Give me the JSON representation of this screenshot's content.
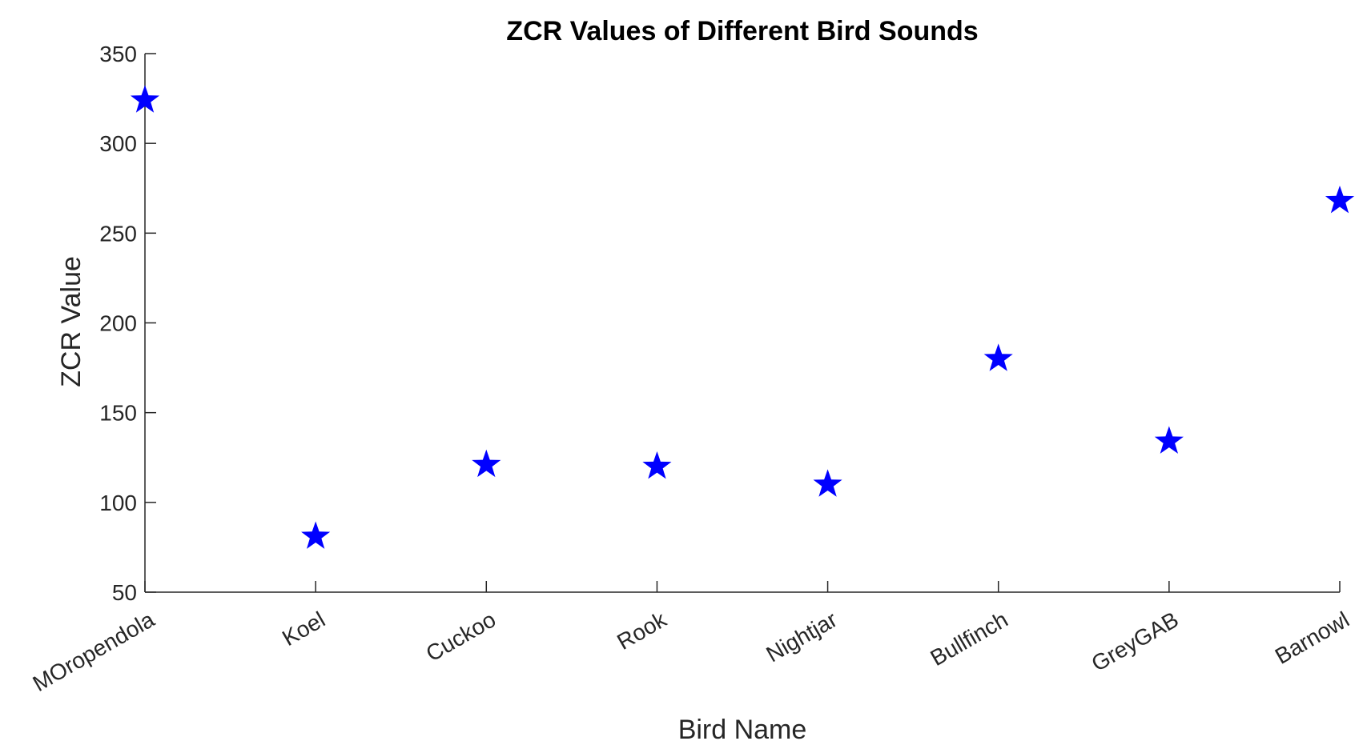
{
  "chart_data": {
    "type": "scatter",
    "title": "ZCR Values of Different Bird Sounds",
    "xlabel": "Bird Name",
    "ylabel": "ZCR Value",
    "categories": [
      "MOropendola",
      "Koel",
      "Cuckoo",
      "Rook",
      "Nightjar",
      "Bullfinch",
      "GreyGAB",
      "Barnowl"
    ],
    "series": [
      {
        "values": [
          324,
          81,
          121,
          120,
          110,
          180,
          134,
          268
        ],
        "marker": "star",
        "color": "#0000ff"
      }
    ],
    "ylim": [
      50,
      350
    ],
    "yticks": [
      50,
      100,
      150,
      200,
      250,
      300,
      350
    ],
    "grid": false,
    "legend": "none"
  }
}
